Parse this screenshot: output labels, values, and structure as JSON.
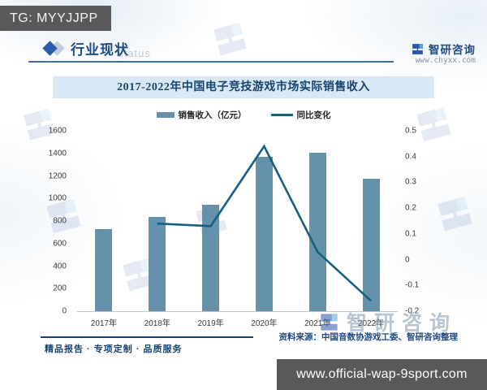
{
  "overlay": {
    "tg_badge": "TG: MYYJJPP",
    "url_bar": "www.official-wap-9sport.com"
  },
  "header": {
    "section_title": "行业现状",
    "background_word": "Status",
    "brand": {
      "name": "智研咨询",
      "website": "www.chyxx.com"
    }
  },
  "chart": {
    "title": "2017-2022年中国电子竞技游戏市场实际销售收入"
  },
  "chart_data": {
    "type": "bar+line",
    "title": "2017-2022年中国电子竞技游戏市场实际销售收入",
    "categories": [
      "2017年",
      "2018年",
      "2019年",
      "2020年",
      "2021年",
      "2022年"
    ],
    "series": [
      {
        "name": "销售收入（亿元）",
        "type": "bar",
        "axis": "left",
        "values": [
          730,
          835,
          947,
          1366,
          1402,
          1178
        ]
      },
      {
        "name": "同比变化",
        "type": "line",
        "axis": "right",
        "values": [
          null,
          0.14,
          0.13,
          0.44,
          0.03,
          -0.16
        ]
      }
    ],
    "left_axis": {
      "min": 0,
      "max": 1600,
      "step": 200,
      "ticks": [
        "0",
        "200",
        "400",
        "600",
        "800",
        "1000",
        "1200",
        "1400",
        "1600"
      ]
    },
    "right_axis": {
      "min": -0.2,
      "max": 0.5,
      "step": 0.1,
      "ticks": [
        "-0.2",
        "-0.1",
        "0",
        "0.1",
        "0.2",
        "0.3",
        "0.4",
        "0.5"
      ]
    },
    "grid": false,
    "legend_position": "top"
  },
  "watermark": {
    "brand_text": "智研咨询"
  },
  "footer": {
    "source": "资料来源：中国音数协游戏工委、智研咨询整理",
    "tagline": "精品报告 · 专项定制 · 品质服务"
  },
  "colors": {
    "bar": "#6591ad",
    "line": "#15607d",
    "accent_blue": "#1d4a80",
    "banner_bg": "#d8e9f5",
    "banner_text": "#17436f",
    "badge_bg": "#59595b",
    "watermark": "#7e95ad"
  }
}
